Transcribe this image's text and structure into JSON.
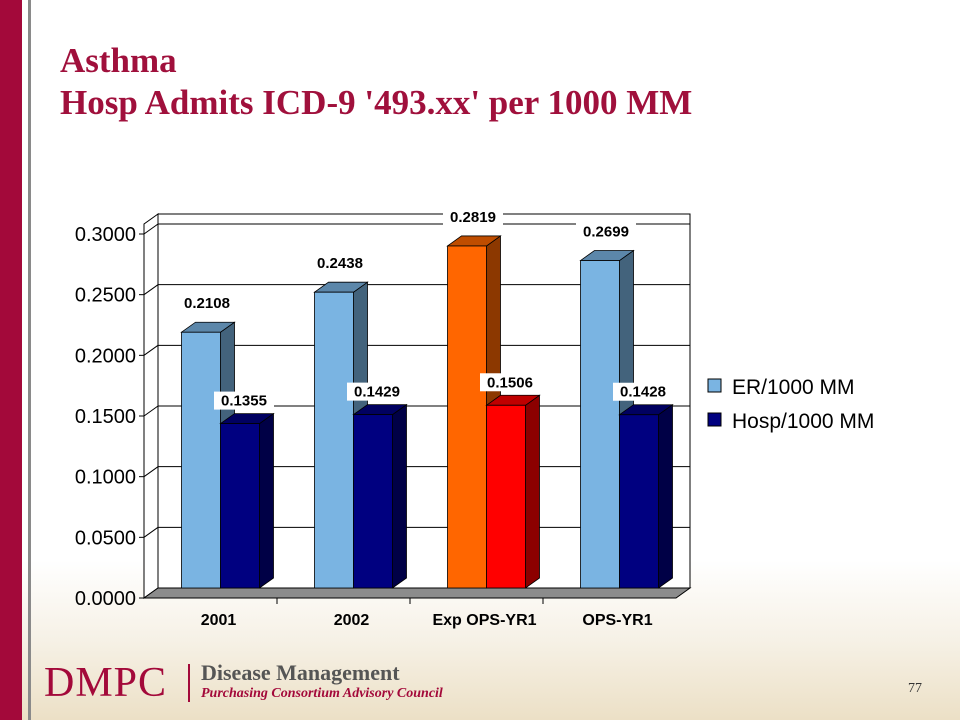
{
  "slide": {
    "title_line1": "Asthma",
    "title_line2": "Hosp Admits ICD-9 '493.xx' per 1000 MM",
    "page_number": "77"
  },
  "footer": {
    "logo_text": "DMPC",
    "org_name": "Disease Management",
    "org_subtitle": "Purchasing Consortium Advisory Council"
  },
  "colors": {
    "accent": "#a3093a",
    "er": "#7ab4e2",
    "hosp": "#000080",
    "er_highlight": "#ff6600",
    "hosp_highlight": "#ff0000"
  },
  "chart_data": {
    "type": "bar",
    "title": "",
    "xlabel": "",
    "ylabel": "",
    "categories": [
      "2001",
      "2002",
      "Exp OPS-YR1",
      "OPS-YR1"
    ],
    "series": [
      {
        "name": "ER/1000 MM",
        "values": [
          0.2108,
          0.2438,
          0.2819,
          0.2699
        ],
        "labels": [
          "0.2108",
          "0.2438",
          "0.2819",
          "0.2699"
        ]
      },
      {
        "name": "Hosp/1000 MM",
        "values": [
          0.1355,
          0.1429,
          0.1506,
          0.1428
        ],
        "labels": [
          "0.1355",
          "0.1429",
          "0.1506",
          "0.1428"
        ]
      }
    ],
    "highlighted_category": "Exp OPS-YR1",
    "ylim": [
      0,
      0.3
    ],
    "yticks": [
      "0.0000",
      "0.0500",
      "0.1000",
      "0.1500",
      "0.2000",
      "0.2500",
      "0.3000"
    ],
    "grid": true,
    "legend": "right",
    "style": "3d-clustered-column"
  }
}
